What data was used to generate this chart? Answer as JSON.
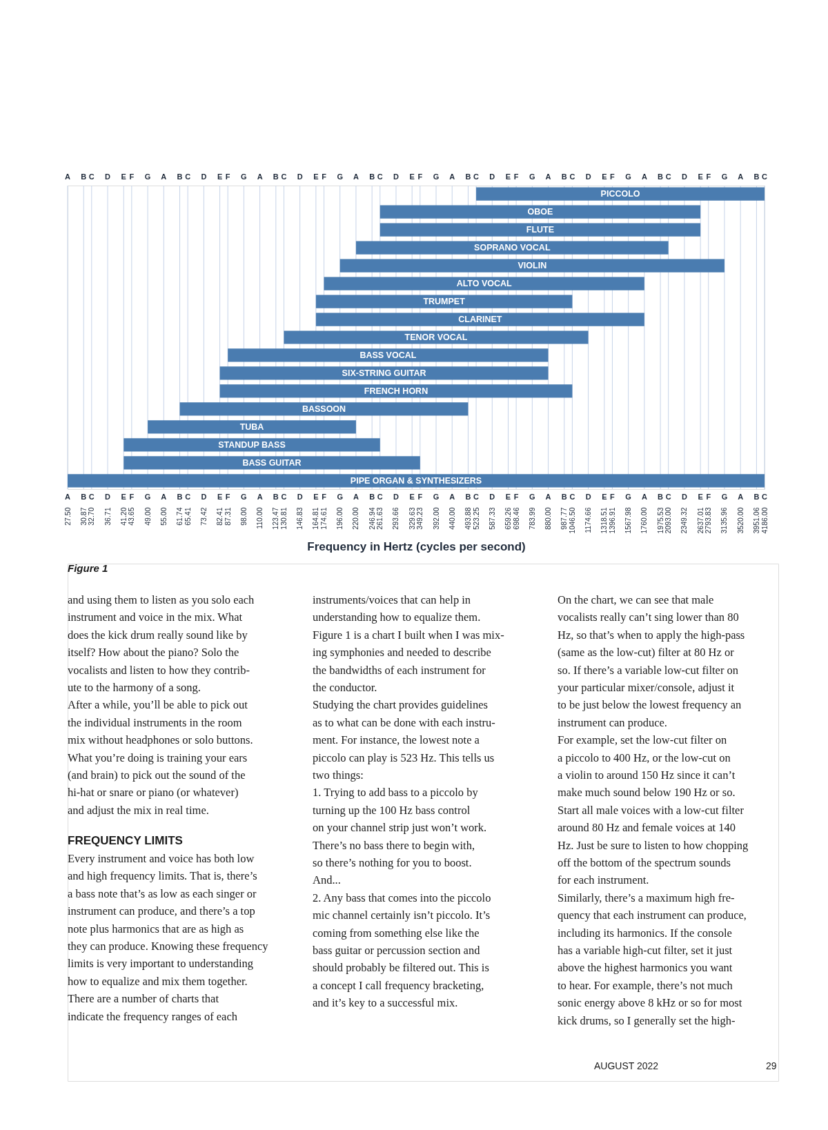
{
  "chart_data": {
    "type": "bar",
    "orientation": "horizontal",
    "log": "x",
    "grid": "x",
    "xlabel": "Frequency in Hertz (cycles per second)",
    "categories": [
      "PICCOLO",
      "OBOE",
      "FLUTE",
      "SOPRANO VOCAL",
      "VIOLIN",
      "ALTO VOCAL",
      "TRUMPET",
      "CLARINET",
      "TENOR VOCAL",
      "BASS VOCAL",
      "SIX-STRING GUITAR",
      "FRENCH HORN",
      "BASSOON",
      "TUBA",
      "STANDUP BASS",
      "BASS GUITAR",
      "PIPE ORGAN & SYNTHESIZERS"
    ],
    "base": [
      523.25,
      261.63,
      261.63,
      220,
      196,
      174.61,
      164.81,
      164.81,
      130.81,
      87.31,
      82.41,
      82.41,
      61.74,
      49,
      41.2,
      41.2,
      27.5
    ],
    "values": [
      3662.75,
      2375.38,
      2375.38,
      1873,
      2939.96,
      1585.39,
      881.69,
      1595.19,
      1043.85,
      792.69,
      797.59,
      964.09,
      432.14,
      171,
      220.43,
      308.03,
      4158.5
    ],
    "color": "#4a7cb0",
    "xlim": [
      27.5,
      4186
    ],
    "xticks": [
      {
        "value": 27.5,
        "label": "27.50"
      },
      {
        "value": 30.87,
        "label": "30.87"
      },
      {
        "value": 32.7,
        "label": "32.70"
      },
      {
        "value": 36.71,
        "label": "36.71"
      },
      {
        "value": 41.2,
        "label": "41.20"
      },
      {
        "value": 43.65,
        "label": "43.65"
      },
      {
        "value": 49,
        "label": "49.00"
      },
      {
        "value": 55,
        "label": "55.00"
      },
      {
        "value": 61.74,
        "label": "61.74"
      },
      {
        "value": 65.41,
        "label": "65.41"
      },
      {
        "value": 73.42,
        "label": "73.42"
      },
      {
        "value": 82.41,
        "label": "82.41"
      },
      {
        "value": 87.31,
        "label": "87.31"
      },
      {
        "value": 98,
        "label": "98.00"
      },
      {
        "value": 110,
        "label": "110.00"
      },
      {
        "value": 123.47,
        "label": "123.47"
      },
      {
        "value": 130.81,
        "label": "130.81"
      },
      {
        "value": 146.83,
        "label": "146.83"
      },
      {
        "value": 164.81,
        "label": "164.81"
      },
      {
        "value": 174.61,
        "label": "174.61"
      },
      {
        "value": 196,
        "label": "196.00"
      },
      {
        "value": 220,
        "label": "220.00"
      },
      {
        "value": 246.94,
        "label": "246.94"
      },
      {
        "value": 261.63,
        "label": "261.63"
      },
      {
        "value": 293.66,
        "label": "293.66"
      },
      {
        "value": 329.63,
        "label": "329.63"
      },
      {
        "value": 349.23,
        "label": "349.23"
      },
      {
        "value": 392,
        "label": "392.00"
      },
      {
        "value": 440,
        "label": "440.00"
      },
      {
        "value": 493.88,
        "label": "493.88"
      },
      {
        "value": 523.25,
        "label": "523.25"
      },
      {
        "value": 587.33,
        "label": "587.33"
      },
      {
        "value": 659.26,
        "label": "659.26"
      },
      {
        "value": 698.46,
        "label": "698.46"
      },
      {
        "value": 783.99,
        "label": "783.99"
      },
      {
        "value": 880,
        "label": "880.00"
      },
      {
        "value": 987.77,
        "label": "987.77"
      },
      {
        "value": 1046.5,
        "label": "1046.50"
      },
      {
        "value": 1174.66,
        "label": "1174.66"
      },
      {
        "value": 1318.51,
        "label": "1318.51"
      },
      {
        "value": 1396.91,
        "label": "1396.91"
      },
      {
        "value": 1567.98,
        "label": "1567.98"
      },
      {
        "value": 1760,
        "label": "1760.00"
      },
      {
        "value": 1975.53,
        "label": "1975.53"
      },
      {
        "value": 2093,
        "label": "2093.00"
      },
      {
        "value": 2349.32,
        "label": "2349.32"
      },
      {
        "value": 2637.01,
        "label": "2637.01"
      },
      {
        "value": 2793.83,
        "label": "2793.83"
      },
      {
        "value": 3135.96,
        "label": "3135.96"
      },
      {
        "value": 3520,
        "label": "3520.00"
      },
      {
        "value": 3951.06,
        "label": "3951.06"
      },
      {
        "value": 4186,
        "label": "4186.00"
      }
    ],
    "annotations": [
      "A B C D E F G A B C D E F G A B C D E F G A B C D E F G A B C D E F G A B C D E F G A B C D E F G A B C",
      "A B C D E F G A B C D E F G A B C D E F G A B C D E F G A B C D E F G A B C D E F G A B C D E F G A B C",
      "Figure 1",
      "and using them to listen as you solo each\ninstrument and voice in the mix. What\ndoes the kick drum really sound like by\nitself? How about the piano? Solo the\nvocalists and listen to how they contrib-\nute to the harmony of a song.\n    After a while, you’ll be able to pick out\nthe individual instruments in the room\nmix without headphones or solo buttons.\nWhat you’re doing is training your ears\n(and brain) to pick out the sound of the\nhi-hat or snare or piano (or whatever)\nand adjust the mix in real time.",
      "FREQUENCY LIMITS",
      "Every instrument and voice has both low\nand high frequency limits. That is, there’s\na bass note that’s as low as each singer or\ninstrument can produce, and there’s a top\nnote plus harmonics that are as high as\nthey can produce. Knowing these frequency\nlimits is very important to understanding\nhow to equalize and mix them together.\n    There are a number of charts that\nindicate the frequency ranges of each",
      "instruments/voices that can help in\nunderstanding how to equalize them.\nFigure 1 is a chart I built when I was mix-\ning symphonies and needed to describe\nthe bandwidths of each instrument for\nthe conductor.\n    Studying the chart provides guidelines\nas to what can be done with each instru-\nment. For instance, the lowest note a\npiccolo can play is 523 Hz. This tells us\ntwo things:\n \n1.  Trying to add bass to a piccolo by\n     turning up the 100 Hz bass control\n     on your channel strip just won’t work.\n     There’s no bass there to begin with,\n     so there’s nothing for you to boost.\n     And...\n2.  Any bass that comes into the piccolo\n     mic channel certainly isn’t piccolo. It’s\n     coming from something else like the\n     bass guitar or percussion section and\n     should probably be filtered out. This is\n     a concept I call frequency bracketing,\n     and it’s key to a successful mix.",
      "    On the chart, we can see that male\nvocalists really can’t sing lower than 80\nHz, so that’s when to apply the high-pass\n(same as the low-cut) filter at 80 Hz or\nso. If there’s a variable low-cut filter on\nyour particular mixer/console, adjust it\nto be just below the lowest frequency an\ninstrument can produce.\n    For example, set the low-cut filter on\na piccolo to 400 Hz, or the low-cut on\na violin to around 150 Hz since it can’t\nmake much sound below 190 Hz or so.\nStart all male voices with a low-cut filter\naround 80 Hz and female voices at 140\nHz. Just be sure to listen to how chopping\noff the bottom of the spectrum sounds\nfor each instrument.\n    Similarly, there’s a maximum high fre-\nquency that each instrument can produce,\nincluding its harmonics. If the console\nhas a variable high-cut filter, set it just\nabove the highest harmonics you want\nto hear. For example, there’s not much\nsonic energy above 8 kHz or so for most\nkick drums, so I generally set the high-",
      "AUGUST  2022",
      "29"
    ]
  }
}
